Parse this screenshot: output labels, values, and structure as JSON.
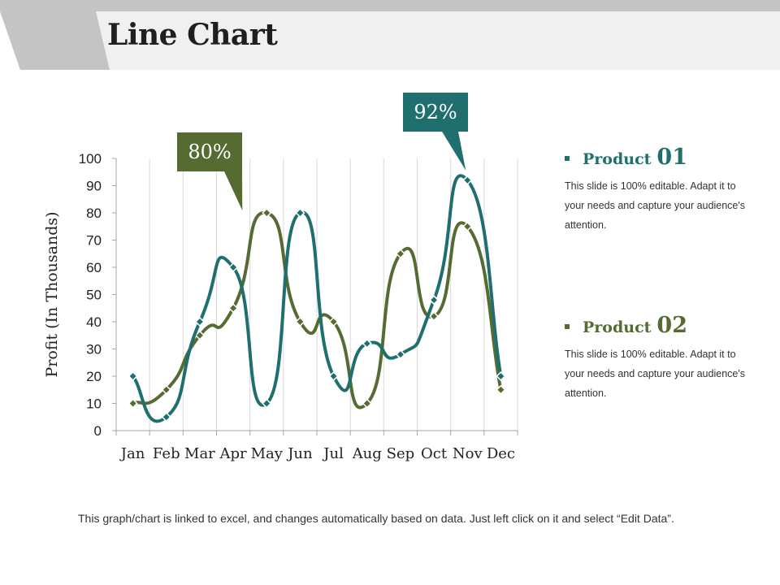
{
  "title": "Line Chart",
  "colors": {
    "product01": "#1f6f6e",
    "product02": "#566b31",
    "header_bg": "#f0f0f0",
    "header_accent": "#c4c4c4"
  },
  "legend": [
    {
      "label": "Product",
      "number": "01",
      "color": "#1f6f6e",
      "description": "This slide is 100% editable. Adapt it to your needs and capture your audience's attention."
    },
    {
      "label": "Product",
      "number": "02",
      "color": "#566b31",
      "description": "This slide is 100% editable. Adapt it to your needs and capture your audience's attention."
    }
  ],
  "footer_note": "This graph/chart is linked to excel, and changes automatically based on data. Just left click on it and select “Edit Data”.",
  "chart_data": {
    "type": "line",
    "title": "",
    "xlabel": "",
    "ylabel": "Profit (In Thousands)",
    "categories": [
      "Jan",
      "Feb",
      "Mar",
      "Apr",
      "May",
      "Jun",
      "Jul",
      "Aug",
      "Sep",
      "Oct",
      "Nov",
      "Dec"
    ],
    "ylim": [
      0,
      100
    ],
    "yticks": [
      0,
      10,
      20,
      30,
      40,
      50,
      60,
      70,
      80,
      90,
      100
    ],
    "grid": "vertical",
    "smooth": true,
    "series": [
      {
        "color": "#1f6f6e",
        "values": [
          20,
          5,
          40,
          60,
          10,
          80,
          20,
          32,
          28,
          48,
          92,
          20
        ]
      },
      {
        "color": "#566b31",
        "values": [
          10,
          15,
          35,
          45,
          80,
          40,
          40,
          10,
          65,
          42,
          75,
          15
        ]
      }
    ],
    "callouts": [
      {
        "text": "80%",
        "series": 1,
        "category": "May",
        "color": "#566b31"
      },
      {
        "text": "92%",
        "series": 0,
        "category": "Nov",
        "color": "#1f6f6e"
      }
    ]
  }
}
